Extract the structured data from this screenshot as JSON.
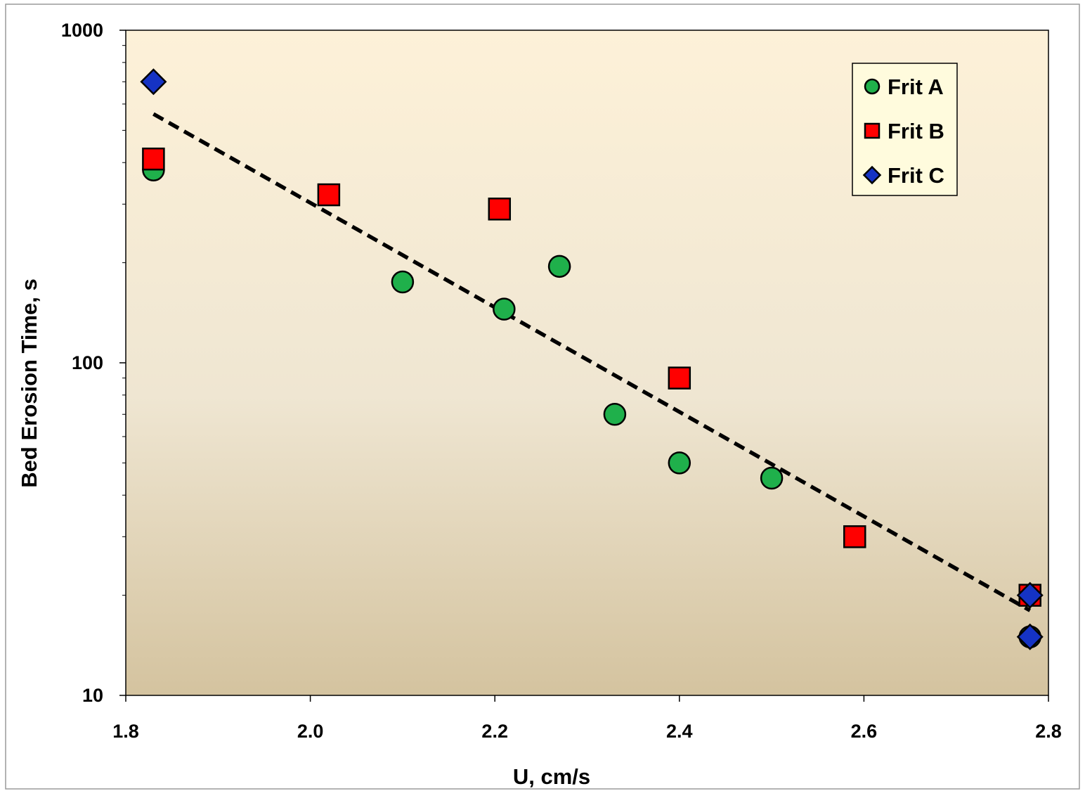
{
  "chart_data": {
    "type": "scatter",
    "title": "",
    "xlabel": "U, cm/s",
    "ylabel": "Bed Erosion Time, s",
    "xlim": [
      1.8,
      2.8
    ],
    "ylim": [
      10,
      1000
    ],
    "yscale": "log",
    "x_ticks": [
      "1.8",
      "2.0",
      "2.2",
      "2.4",
      "2.6",
      "2.8"
    ],
    "y_ticks": [
      "10",
      "100",
      "1000"
    ],
    "grid": false,
    "legend_position": "top-right",
    "series": [
      {
        "name": "Frit A",
        "marker": "circle",
        "color": "#1fb04b",
        "points": [
          [
            1.83,
            380
          ],
          [
            2.1,
            175
          ],
          [
            2.21,
            145
          ],
          [
            2.27,
            195
          ],
          [
            2.33,
            70
          ],
          [
            2.4,
            50
          ],
          [
            2.5,
            45
          ],
          [
            2.78,
            15
          ]
        ]
      },
      {
        "name": "Frit B",
        "marker": "square",
        "color": "#ff0000",
        "points": [
          [
            1.83,
            410
          ],
          [
            2.02,
            320
          ],
          [
            2.205,
            290
          ],
          [
            2.4,
            90
          ],
          [
            2.59,
            30
          ],
          [
            2.78,
            20
          ]
        ]
      },
      {
        "name": "Frit C",
        "marker": "diamond",
        "color": "#1533c4",
        "points": [
          [
            1.83,
            700
          ],
          [
            2.78,
            20
          ],
          [
            2.78,
            15
          ]
        ]
      }
    ],
    "trendline": {
      "style": "dashed",
      "color": "#000000",
      "points": [
        [
          1.83,
          560
        ],
        [
          2.78,
          18
        ]
      ]
    },
    "plot_background": {
      "top": "#fdf1d8",
      "middle": "#efe6d2",
      "bottom": "#d4c39f"
    }
  }
}
